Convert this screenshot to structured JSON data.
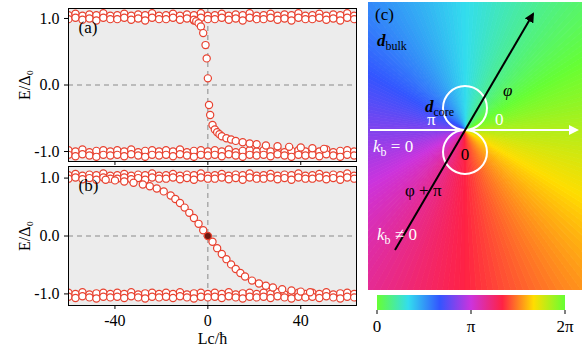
{
  "chart_data": [
    {
      "type": "scatter",
      "title": "(a)",
      "ylabel": "E/Δ₀",
      "xlabel": null,
      "xlim": [
        -60,
        64
      ],
      "xticks": [
        -40,
        0,
        40
      ],
      "ylim": [
        -1.15,
        1.15
      ],
      "yticks": [
        {
          "value": -1,
          "label": "-1.0"
        },
        {
          "value": 0,
          "label": "0.0"
        },
        {
          "value": 1,
          "label": "1.0"
        }
      ],
      "tick_labels": "y",
      "hlines": [
        0
      ],
      "vlines": [
        0
      ],
      "x": [
        -60,
        -57,
        -54,
        -51,
        -48,
        -45,
        -42,
        -39,
        -36,
        -33,
        -30,
        -27,
        -24,
        -21,
        -18,
        -15,
        -12,
        -9,
        -6,
        -3,
        0,
        3,
        6,
        9,
        12,
        15,
        18,
        21,
        24,
        27,
        30,
        33,
        36,
        39,
        42,
        45,
        48,
        51,
        54,
        57,
        60,
        63
      ],
      "series": [
        {
          "color": "#e8412f",
          "marker": "circle-open",
          "values": [
            1.05,
            1.07,
            1.04,
            1.06,
            1.05,
            1.08,
            1.04,
            1.05,
            1.07,
            1.04,
            1.06,
            1.05,
            1.08,
            1.04,
            1.05,
            1.07,
            1.04,
            1.06,
            1.05,
            1.08,
            1.04,
            1.05,
            1.07,
            1.04,
            1.06,
            1.05,
            1.08,
            1.04,
            1.05,
            1.07,
            1.04,
            1.06,
            1.05,
            1.08,
            1.04,
            1.05,
            1.07,
            1.04,
            1.06,
            1.05,
            1.08,
            1.04
          ]
        },
        {
          "color": "#e8412f",
          "marker": "circle-open",
          "values": [
            0.99,
            1.01,
            0.98,
            1.0,
            0.97,
            1.01,
            0.99,
            0.99,
            1.01,
            0.98,
            1.0,
            0.97,
            1.01,
            0.99,
            0.99,
            1.01,
            0.98,
            1.0,
            0.97,
            1.01,
            0.99,
            0.99,
            1.01,
            0.98,
            1.0,
            0.97,
            1.01,
            0.99,
            0.99,
            1.01,
            0.98,
            1.0,
            0.97,
            1.01,
            0.99,
            0.99,
            1.01,
            0.98,
            1.0,
            0.97,
            1.01,
            0.99
          ]
        },
        {
          "color": "#e8412f",
          "marker": "circle-open",
          "values": [
            -0.98,
            -1.0,
            -0.97,
            -1.01,
            -0.99,
            -0.98,
            -1.0,
            -0.98,
            -1.0,
            -0.97,
            -1.01,
            -0.99,
            -0.98,
            -1.0,
            -0.98,
            -1.0,
            -0.97,
            -1.01,
            -0.99,
            -0.98,
            -1.0,
            -0.98,
            -1.0,
            -0.97,
            -1.01,
            -0.99,
            -0.98,
            -1.0,
            -0.98,
            -1.0,
            -0.97,
            -1.01,
            -0.99,
            -0.98,
            -1.0,
            -0.98,
            -1.0,
            -0.97,
            -1.01,
            -0.99,
            -0.98,
            -1.0
          ]
        },
        {
          "color": "#e8412f",
          "marker": "circle-open",
          "values": [
            -1.05,
            -1.07,
            -1.04,
            -1.06,
            -1.08,
            -1.05,
            -1.06,
            -1.05,
            -1.07,
            -1.04,
            -1.06,
            -1.08,
            -1.05,
            -1.06,
            -1.05,
            -1.07,
            -1.04,
            -1.06,
            -1.08,
            -1.05,
            -1.06,
            -1.05,
            -1.07,
            -1.04,
            -1.06,
            -1.08,
            -1.05,
            -1.06,
            -1.05,
            -1.07,
            -1.04,
            -1.06,
            -1.08,
            -1.05,
            -1.06,
            -1.05,
            -1.07,
            -1.04,
            -1.06,
            -1.08,
            -1.05,
            -1.06
          ]
        },
        {
          "color": "#e8412f",
          "marker": "circle-open",
          "x": [
            -6,
            -5,
            -4,
            -3,
            -2,
            -1,
            -0.5,
            0,
            0.5,
            1,
            2,
            3,
            4,
            5,
            6,
            8,
            10,
            12,
            15,
            18,
            21,
            25,
            30,
            35,
            40,
            45,
            50
          ],
          "values": [
            0.98,
            0.96,
            0.93,
            0.88,
            0.78,
            0.6,
            0.4,
            0.1,
            -0.3,
            -0.45,
            -0.6,
            -0.67,
            -0.71,
            -0.74,
            -0.77,
            -0.8,
            -0.82,
            -0.84,
            -0.86,
            -0.88,
            -0.89,
            -0.91,
            -0.92,
            -0.93,
            -0.94,
            -0.95,
            -0.96
          ]
        }
      ]
    },
    {
      "type": "scatter",
      "title": "(b)",
      "ylabel": "E/Δ₀",
      "xlabel": "Lc/ħ",
      "xlim": [
        -60,
        64
      ],
      "xticks": [
        -40,
        0,
        40
      ],
      "ylim": [
        -1.2,
        1.2
      ],
      "yticks": [
        {
          "value": -1,
          "label": "-1.0"
        },
        {
          "value": 0,
          "label": "0.0"
        },
        {
          "value": 1,
          "label": "1.0"
        }
      ],
      "hlines": [
        0
      ],
      "vlines": [
        0
      ],
      "x": [
        -60,
        -57,
        -54,
        -51,
        -48,
        -45,
        -42,
        -39,
        -36,
        -33,
        -30,
        -27,
        -24,
        -21,
        -18,
        -15,
        -12,
        -9,
        -6,
        -3,
        0,
        3,
        6,
        9,
        12,
        15,
        18,
        21,
        24,
        27,
        30,
        33,
        36,
        39,
        42,
        45,
        48,
        51,
        54,
        57,
        60,
        63
      ],
      "series": [
        {
          "color": "#e8412f",
          "marker": "circle-open",
          "values": [
            1.05,
            1.07,
            1.04,
            1.06,
            1.05,
            1.08,
            1.04,
            1.05,
            1.07,
            1.04,
            1.06,
            1.05,
            1.08,
            1.04,
            1.05,
            1.07,
            1.04,
            1.06,
            1.05,
            1.08,
            1.04,
            1.05,
            1.07,
            1.04,
            1.06,
            1.05,
            1.08,
            1.04,
            1.05,
            1.07,
            1.04,
            1.06,
            1.05,
            1.08,
            1.04,
            1.05,
            1.07,
            1.04,
            1.06,
            1.05,
            1.08,
            1.04
          ]
        },
        {
          "color": "#e8412f",
          "marker": "circle-open",
          "values": [
            0.99,
            1.01,
            0.98,
            1.0,
            0.97,
            1.01,
            0.99,
            0.99,
            1.01,
            0.98,
            1.0,
            0.97,
            1.01,
            0.99,
            0.99,
            1.01,
            0.98,
            1.0,
            0.97,
            1.01,
            0.99,
            0.99,
            1.01,
            0.98,
            1.0,
            0.97,
            1.01,
            0.99,
            0.99,
            1.01,
            0.98,
            1.0,
            0.97,
            1.01,
            0.99,
            0.99,
            1.01,
            0.98,
            1.0,
            0.97,
            1.01,
            0.99
          ]
        },
        {
          "color": "#e8412f",
          "marker": "circle-open",
          "values": [
            -0.98,
            -1.0,
            -0.97,
            -1.01,
            -0.99,
            -0.98,
            -1.0,
            -0.98,
            -1.0,
            -0.97,
            -1.01,
            -0.99,
            -0.98,
            -1.0,
            -0.98,
            -1.0,
            -0.97,
            -1.01,
            -0.99,
            -0.98,
            -1.0,
            -0.98,
            -1.0,
            -0.97,
            -1.01,
            -0.99,
            -0.98,
            -1.0,
            -0.98,
            -1.0,
            -0.97,
            -1.01,
            -0.99,
            -0.98,
            -1.0,
            -0.98,
            -1.0,
            -0.97,
            -1.01,
            -0.99,
            -0.98,
            -1.0
          ]
        },
        {
          "color": "#e8412f",
          "marker": "circle-open",
          "values": [
            -1.05,
            -1.07,
            -1.04,
            -1.06,
            -1.08,
            -1.05,
            -1.06,
            -1.05,
            -1.07,
            -1.04,
            -1.06,
            -1.08,
            -1.05,
            -1.06,
            -1.05,
            -1.07,
            -1.04,
            -1.06,
            -1.08,
            -1.05,
            -1.06,
            -1.05,
            -1.07,
            -1.04,
            -1.06,
            -1.08,
            -1.05,
            -1.06,
            -1.05,
            -1.07,
            -1.04,
            -1.06,
            -1.08,
            -1.05,
            -1.06,
            -1.05,
            -1.07,
            -1.04,
            -1.06,
            -1.08,
            -1.05,
            -1.06
          ]
        },
        {
          "color": "#e8412f",
          "marker": "circle-open",
          "x": [
            -44,
            -40,
            -36,
            -32,
            -28,
            -25,
            -22,
            -19,
            -16,
            -14,
            -12,
            -10,
            -8,
            -6,
            -4,
            -2,
            2,
            4,
            6,
            8,
            10,
            12,
            14,
            16,
            19,
            22,
            25,
            28,
            32,
            36,
            40,
            44
          ],
          "values": [
            0.97,
            0.96,
            0.94,
            0.92,
            0.89,
            0.86,
            0.82,
            0.77,
            0.7,
            0.64,
            0.57,
            0.49,
            0.4,
            0.31,
            0.21,
            0.1,
            -0.1,
            -0.21,
            -0.31,
            -0.4,
            -0.49,
            -0.57,
            -0.64,
            -0.7,
            -0.77,
            -0.82,
            -0.86,
            -0.89,
            -0.92,
            -0.94,
            -0.96,
            -0.97
          ]
        },
        {
          "color": "#6b1a12",
          "marker": "circle-filled",
          "x": [
            0
          ],
          "values": [
            0
          ]
        }
      ]
    },
    {
      "type": "phase_map",
      "title": "(c)",
      "labels": {
        "bulk": {
          "symbol": "d",
          "sub": "bulk"
        },
        "core": {
          "symbol": "d",
          "sub": "core"
        },
        "phi": "φ",
        "phi_plus_pi": "φ + π",
        "left": "π",
        "right": "0",
        "lower": "0",
        "kb_zero": {
          "symbol": "k",
          "sub": "b",
          "text": " = 0"
        },
        "kb_nonzero": {
          "symbol": "k",
          "sub": "b",
          "text": " ≠ 0"
        }
      },
      "colors": [
        "#66ff33",
        "#33ddee",
        "#3355ff",
        "#cc33dd",
        "#ff2244",
        "#ffdd00",
        "#66ff33"
      ],
      "colorbar": {
        "range": [
          0,
          6.2832
        ],
        "ticks": [
          0,
          {
            "value": 3.1416,
            "label": "π"
          },
          {
            "value": 6.2832,
            "label": "2π"
          }
        ]
      }
    }
  ]
}
